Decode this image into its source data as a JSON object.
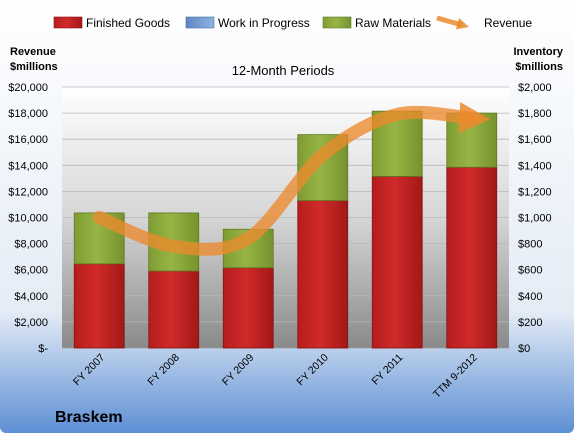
{
  "chart_data": {
    "type": "bar",
    "stacked": true,
    "title": "12-Month Periods",
    "company": "Braskem",
    "left_axis_label": [
      "Revenue",
      "$millions"
    ],
    "right_axis_label": [
      "Inventory",
      "$millions"
    ],
    "categories": [
      "FY 2007",
      "FY 2008",
      "FY 2009",
      "FY 2010",
      "FY 2011",
      "TTM 9-2012"
    ],
    "left_axis": {
      "min": 0,
      "max": 20000,
      "ticks": [
        "$-",
        "$2,000",
        "$4,000",
        "$6,000",
        "$8,000",
        "$10,000",
        "$12,000",
        "$14,000",
        "$16,000",
        "$18,000",
        "$20,000"
      ]
    },
    "right_axis": {
      "min": 0,
      "max": 2000,
      "ticks": [
        "$0",
        "$200",
        "$400",
        "$600",
        "$800",
        "$1,000",
        "$1,200",
        "$1,400",
        "$1,600",
        "$1,800",
        "$2,000"
      ]
    },
    "series": [
      {
        "name": "Finished Goods",
        "axis": "right",
        "color": "#cc2222",
        "values": [
          645,
          590,
          615,
          1130,
          1315,
          1385
        ]
      },
      {
        "name": "Work in Progress",
        "axis": "right",
        "color": "#6f96d0",
        "values": [
          0,
          0,
          0,
          0,
          0,
          0
        ]
      },
      {
        "name": "Raw Materials",
        "axis": "right",
        "color": "#8fae3c",
        "values": [
          390,
          445,
          295,
          505,
          500,
          415
        ]
      },
      {
        "name": "Revenue",
        "axis": "left",
        "type": "line",
        "color": "#ec8a2d",
        "values": [
          10000,
          7800,
          8400,
          14800,
          17900,
          17600
        ]
      }
    ],
    "grid": true
  }
}
